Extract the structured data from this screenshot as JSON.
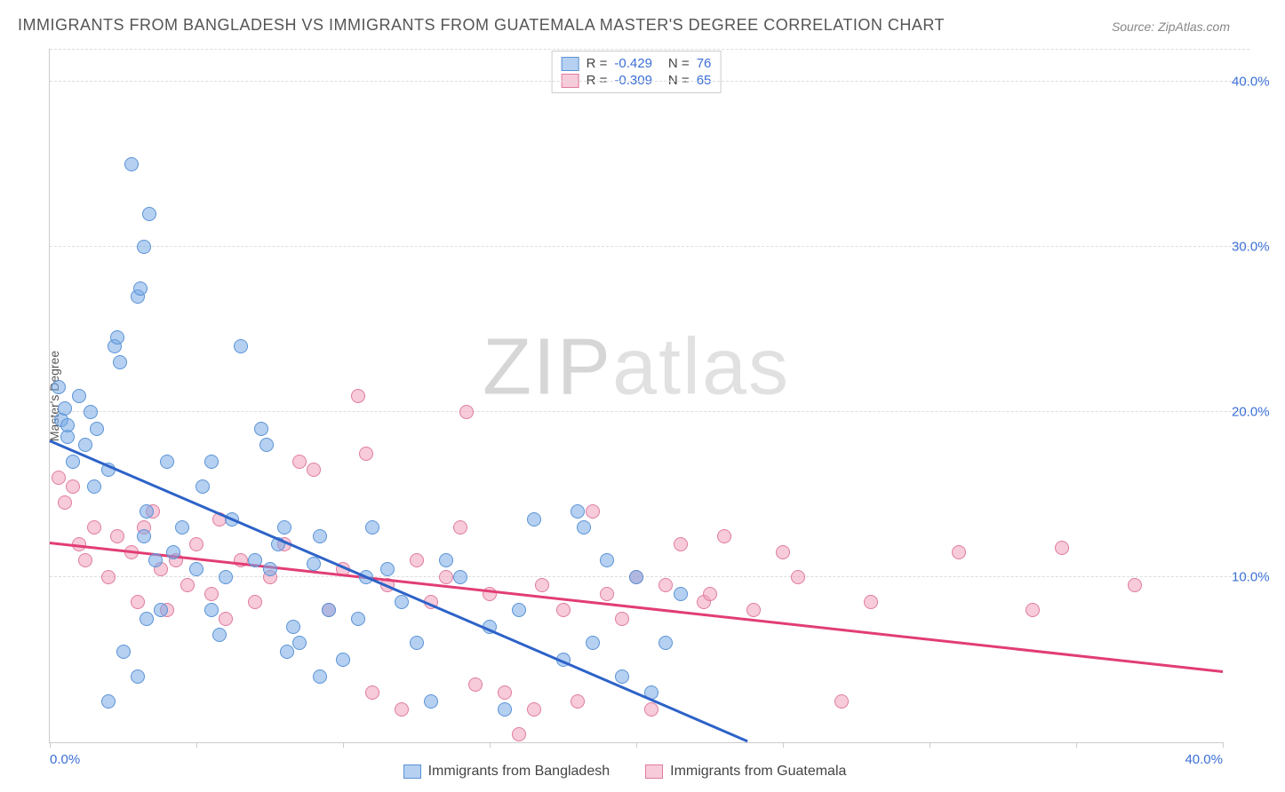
{
  "title": "IMMIGRANTS FROM BANGLADESH VS IMMIGRANTS FROM GUATEMALA MASTER'S DEGREE CORRELATION CHART",
  "source": "Source: ZipAtlas.com",
  "watermark": {
    "part1": "ZIP",
    "part2": "atlas"
  },
  "y_axis": {
    "title": "Master's Degree",
    "min": 0,
    "max": 42,
    "gridlines": [
      10,
      20,
      30,
      40
    ],
    "tick_labels": [
      "10.0%",
      "20.0%",
      "30.0%",
      "40.0%"
    ]
  },
  "x_axis": {
    "min": 0,
    "max": 40,
    "ticks": [
      0,
      5,
      10,
      15,
      20,
      25,
      30,
      35,
      40
    ],
    "end_labels": {
      "left": "0.0%",
      "right": "40.0%"
    }
  },
  "series": {
    "bangladesh": {
      "label": "Immigrants from Bangladesh",
      "fill": "rgba(120,170,230,0.55)",
      "stroke": "#5a93d6",
      "trend_color": "#2d62c8",
      "trend": {
        "x1": 0,
        "y1": 18.2,
        "x2": 23.8,
        "y2": 0
      },
      "stats": {
        "R": "-0.429",
        "N": "76"
      },
      "points": [
        [
          0.3,
          21.5
        ],
        [
          0.4,
          19.5
        ],
        [
          0.5,
          20.2
        ],
        [
          0.6,
          18.5
        ],
        [
          0.6,
          19.2
        ],
        [
          0.8,
          17.0
        ],
        [
          1.0,
          21.0
        ],
        [
          1.2,
          18.0
        ],
        [
          1.5,
          15.5
        ],
        [
          1.4,
          20.0
        ],
        [
          1.6,
          19.0
        ],
        [
          2.0,
          16.5
        ],
        [
          2.2,
          24.0
        ],
        [
          2.3,
          24.5
        ],
        [
          2.4,
          23.0
        ],
        [
          2.8,
          35.0
        ],
        [
          3.0,
          27.0
        ],
        [
          3.1,
          27.5
        ],
        [
          3.2,
          30.0
        ],
        [
          3.4,
          32.0
        ],
        [
          3.3,
          14.0
        ],
        [
          3.2,
          12.5
        ],
        [
          3.6,
          11.0
        ],
        [
          3.3,
          7.5
        ],
        [
          3.8,
          8.0
        ],
        [
          2.0,
          2.5
        ],
        [
          2.5,
          5.5
        ],
        [
          3.0,
          4.0
        ],
        [
          4.0,
          17.0
        ],
        [
          4.2,
          11.5
        ],
        [
          4.5,
          13.0
        ],
        [
          5.0,
          10.5
        ],
        [
          5.2,
          15.5
        ],
        [
          5.5,
          17.0
        ],
        [
          5.5,
          8.0
        ],
        [
          5.8,
          6.5
        ],
        [
          6.0,
          10.0
        ],
        [
          6.2,
          13.5
        ],
        [
          6.5,
          24.0
        ],
        [
          7.0,
          11.0
        ],
        [
          7.2,
          19.0
        ],
        [
          7.4,
          18.0
        ],
        [
          7.5,
          10.5
        ],
        [
          7.8,
          12.0
        ],
        [
          8.0,
          13.0
        ],
        [
          8.1,
          5.5
        ],
        [
          8.3,
          7.0
        ],
        [
          8.5,
          6.0
        ],
        [
          9.0,
          10.8
        ],
        [
          9.2,
          4.0
        ],
        [
          9.2,
          12.5
        ],
        [
          9.5,
          8.0
        ],
        [
          10.0,
          5.0
        ],
        [
          10.5,
          7.5
        ],
        [
          10.8,
          10.0
        ],
        [
          11.0,
          13.0
        ],
        [
          11.5,
          10.5
        ],
        [
          12.0,
          8.5
        ],
        [
          12.5,
          6.0
        ],
        [
          13.0,
          2.5
        ],
        [
          13.5,
          11.0
        ],
        [
          14.0,
          10.0
        ],
        [
          15.0,
          7.0
        ],
        [
          15.5,
          2.0
        ],
        [
          16.0,
          8.0
        ],
        [
          16.5,
          13.5
        ],
        [
          17.5,
          5.0
        ],
        [
          18.0,
          14.0
        ],
        [
          18.2,
          13.0
        ],
        [
          18.5,
          6.0
        ],
        [
          19.0,
          11.0
        ],
        [
          19.5,
          4.0
        ],
        [
          20.0,
          10.0
        ],
        [
          20.5,
          3.0
        ],
        [
          21.0,
          6.0
        ],
        [
          21.5,
          9.0
        ]
      ]
    },
    "guatemala": {
      "label": "Immigrants from Guatemala",
      "fill": "rgba(240,160,185,0.55)",
      "stroke": "#e07ba0",
      "trend_color": "#e23d75",
      "trend": {
        "x1": 0,
        "y1": 12.0,
        "x2": 40,
        "y2": 4.2
      },
      "stats": {
        "R": "-0.309",
        "N": "65"
      },
      "points": [
        [
          0.3,
          16.0
        ],
        [
          0.5,
          14.5
        ],
        [
          0.8,
          15.5
        ],
        [
          1.0,
          12.0
        ],
        [
          1.2,
          11.0
        ],
        [
          1.5,
          13.0
        ],
        [
          2.0,
          10.0
        ],
        [
          2.3,
          12.5
        ],
        [
          2.8,
          11.5
        ],
        [
          3.0,
          8.5
        ],
        [
          3.2,
          13.0
        ],
        [
          3.5,
          14.0
        ],
        [
          3.8,
          10.5
        ],
        [
          4.0,
          8.0
        ],
        [
          4.3,
          11.0
        ],
        [
          4.7,
          9.5
        ],
        [
          5.0,
          12.0
        ],
        [
          5.5,
          9.0
        ],
        [
          5.8,
          13.5
        ],
        [
          6.0,
          7.5
        ],
        [
          6.5,
          11.0
        ],
        [
          7.0,
          8.5
        ],
        [
          7.5,
          10.0
        ],
        [
          8.0,
          12.0
        ],
        [
          8.5,
          17.0
        ],
        [
          9.0,
          16.5
        ],
        [
          9.5,
          8.0
        ],
        [
          10.0,
          10.5
        ],
        [
          10.5,
          21.0
        ],
        [
          10.8,
          17.5
        ],
        [
          11.0,
          3.0
        ],
        [
          11.5,
          9.5
        ],
        [
          12.0,
          2.0
        ],
        [
          12.5,
          11.0
        ],
        [
          13.0,
          8.5
        ],
        [
          13.5,
          10.0
        ],
        [
          14.0,
          13.0
        ],
        [
          14.2,
          20.0
        ],
        [
          14.5,
          3.5
        ],
        [
          15.0,
          9.0
        ],
        [
          15.5,
          3.0
        ],
        [
          16.0,
          0.5
        ],
        [
          16.5,
          2.0
        ],
        [
          16.8,
          9.5
        ],
        [
          17.5,
          8.0
        ],
        [
          18.0,
          2.5
        ],
        [
          18.5,
          14.0
        ],
        [
          19.0,
          9.0
        ],
        [
          19.5,
          7.5
        ],
        [
          20.0,
          10.0
        ],
        [
          20.5,
          2.0
        ],
        [
          21.0,
          9.5
        ],
        [
          21.5,
          12.0
        ],
        [
          22.3,
          8.5
        ],
        [
          22.5,
          9.0
        ],
        [
          23.0,
          12.5
        ],
        [
          24.0,
          8.0
        ],
        [
          25.0,
          11.5
        ],
        [
          25.5,
          10.0
        ],
        [
          27.0,
          2.5
        ],
        [
          28.0,
          8.5
        ],
        [
          31.0,
          11.5
        ],
        [
          33.5,
          8.0
        ],
        [
          34.5,
          11.8
        ],
        [
          37.0,
          9.5
        ]
      ]
    }
  },
  "colors": {
    "grid": "#dddddd",
    "axis": "#cccccc",
    "text": "#555555",
    "tick_text": "#3b6fd6"
  }
}
